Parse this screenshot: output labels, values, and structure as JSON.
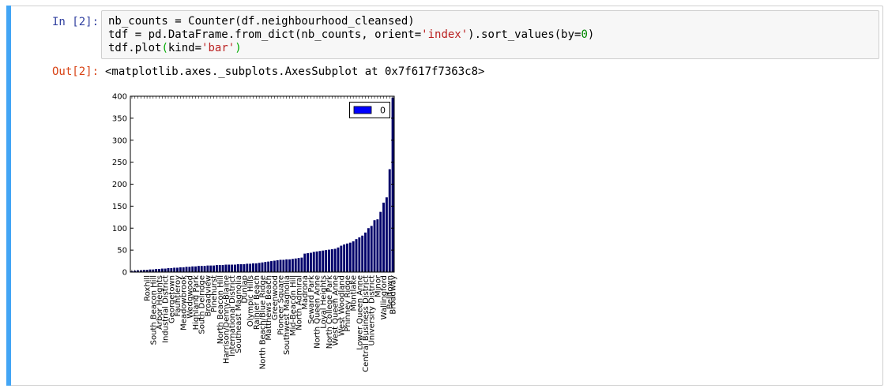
{
  "cell": {
    "in_prompt": "In [2]:",
    "code_lines": [
      [
        {
          "t": "nb_counts = Counter(df.neighbourhood_cleansed)"
        }
      ],
      [
        {
          "t": "tdf = pd.DataFrame.from_dict(nb_counts, orient="
        },
        {
          "t": "'index'",
          "c": "s"
        },
        {
          "t": ").sort_values(by="
        },
        {
          "t": "0",
          "c": "n"
        },
        {
          "t": ")"
        }
      ],
      [
        {
          "t": "tdf.plot"
        },
        {
          "t": "(",
          "c": "p"
        },
        {
          "t": "kind="
        },
        {
          "t": "'bar'",
          "c": "s"
        },
        {
          "t": ")",
          "c": "p"
        }
      ]
    ],
    "out_prompt": "Out[2]:",
    "output_text": "<matplotlib.axes._subplots.AxesSubplot at 0x7f617f7363c8>"
  },
  "colors": {
    "bar": "#00006b",
    "legend_swatch": "#0000ff",
    "cell_accent": "#42a5f5"
  },
  "chart_data": {
    "type": "bar",
    "ylim": [
      0,
      400
    ],
    "yticks": [
      0,
      50,
      100,
      150,
      200,
      250,
      300,
      350,
      400
    ],
    "legend": {
      "labels": [
        "0"
      ],
      "position": "top-right"
    },
    "xtick_labels": [
      {
        "i": 5,
        "label": "Roxhill"
      },
      {
        "i": 7,
        "label": "South Beacon Hill"
      },
      {
        "i": 9,
        "label": "Arbor Heights"
      },
      {
        "i": 11,
        "label": "Industrial District"
      },
      {
        "i": 13,
        "label": "Georgetown"
      },
      {
        "i": 15,
        "label": "Fauntleroy"
      },
      {
        "i": 17,
        "label": "Meadowbrook"
      },
      {
        "i": 19,
        "label": "Wedgwood"
      },
      {
        "i": 21,
        "label": "Highland Park"
      },
      {
        "i": 23,
        "label": "South Delridge"
      },
      {
        "i": 25,
        "label": "Broadview"
      },
      {
        "i": 27,
        "label": "Pinehurst"
      },
      {
        "i": 29,
        "label": "North Beacon Hill"
      },
      {
        "i": 31,
        "label": "Harrison/Denny-Blaine"
      },
      {
        "i": 33,
        "label": "International District"
      },
      {
        "i": 35,
        "label": "Southeast Magnolia"
      },
      {
        "i": 37,
        "label": "Dunlap"
      },
      {
        "i": 39,
        "label": "Olympic Hills"
      },
      {
        "i": 41,
        "label": "Rainier Beach"
      },
      {
        "i": 43,
        "label": "North Beach/Blue Ridge"
      },
      {
        "i": 45,
        "label": "Matthews Beach"
      },
      {
        "i": 47,
        "label": "Greenwood"
      },
      {
        "i": 49,
        "label": "Pioneer Square"
      },
      {
        "i": 51,
        "label": "Southwest Magnolia"
      },
      {
        "i": 53,
        "label": "Mid-Beacon Hill"
      },
      {
        "i": 55,
        "label": "North Admiral"
      },
      {
        "i": 57,
        "label": "Madrona"
      },
      {
        "i": 59,
        "label": "Seward Park"
      },
      {
        "i": 61,
        "label": "North Queen Anne"
      },
      {
        "i": 63,
        "label": "Loyal Heights"
      },
      {
        "i": 65,
        "label": "North College Park"
      },
      {
        "i": 67,
        "label": "West Queen Anne"
      },
      {
        "i": 69,
        "label": "West Woodland"
      },
      {
        "i": 71,
        "label": "Phinney Ridge"
      },
      {
        "i": 73,
        "label": "Montlake"
      },
      {
        "i": 75,
        "label": "Lower Queen Anne"
      },
      {
        "i": 77,
        "label": "Central Business District"
      },
      {
        "i": 79,
        "label": "University District"
      },
      {
        "i": 81,
        "label": "Minor"
      },
      {
        "i": 83,
        "label": "Wallingford"
      },
      {
        "i": 85,
        "label": "Belltown"
      },
      {
        "i": 86,
        "label": "Broadway"
      }
    ],
    "values": [
      2,
      3,
      4,
      4,
      5,
      5,
      6,
      6,
      7,
      7,
      8,
      8,
      9,
      9,
      10,
      10,
      11,
      11,
      12,
      12,
      13,
      13,
      14,
      14,
      14,
      15,
      15,
      15,
      16,
      16,
      16,
      17,
      17,
      17,
      17,
      18,
      18,
      18,
      19,
      19,
      20,
      20,
      21,
      22,
      23,
      24,
      25,
      26,
      27,
      28,
      28,
      29,
      29,
      30,
      31,
      32,
      33,
      42,
      43,
      44,
      46,
      47,
      48,
      49,
      50,
      51,
      52,
      53,
      56,
      60,
      63,
      65,
      67,
      70,
      75,
      79,
      83,
      90,
      100,
      105,
      118,
      120,
      137,
      158,
      170,
      234,
      397
    ]
  }
}
